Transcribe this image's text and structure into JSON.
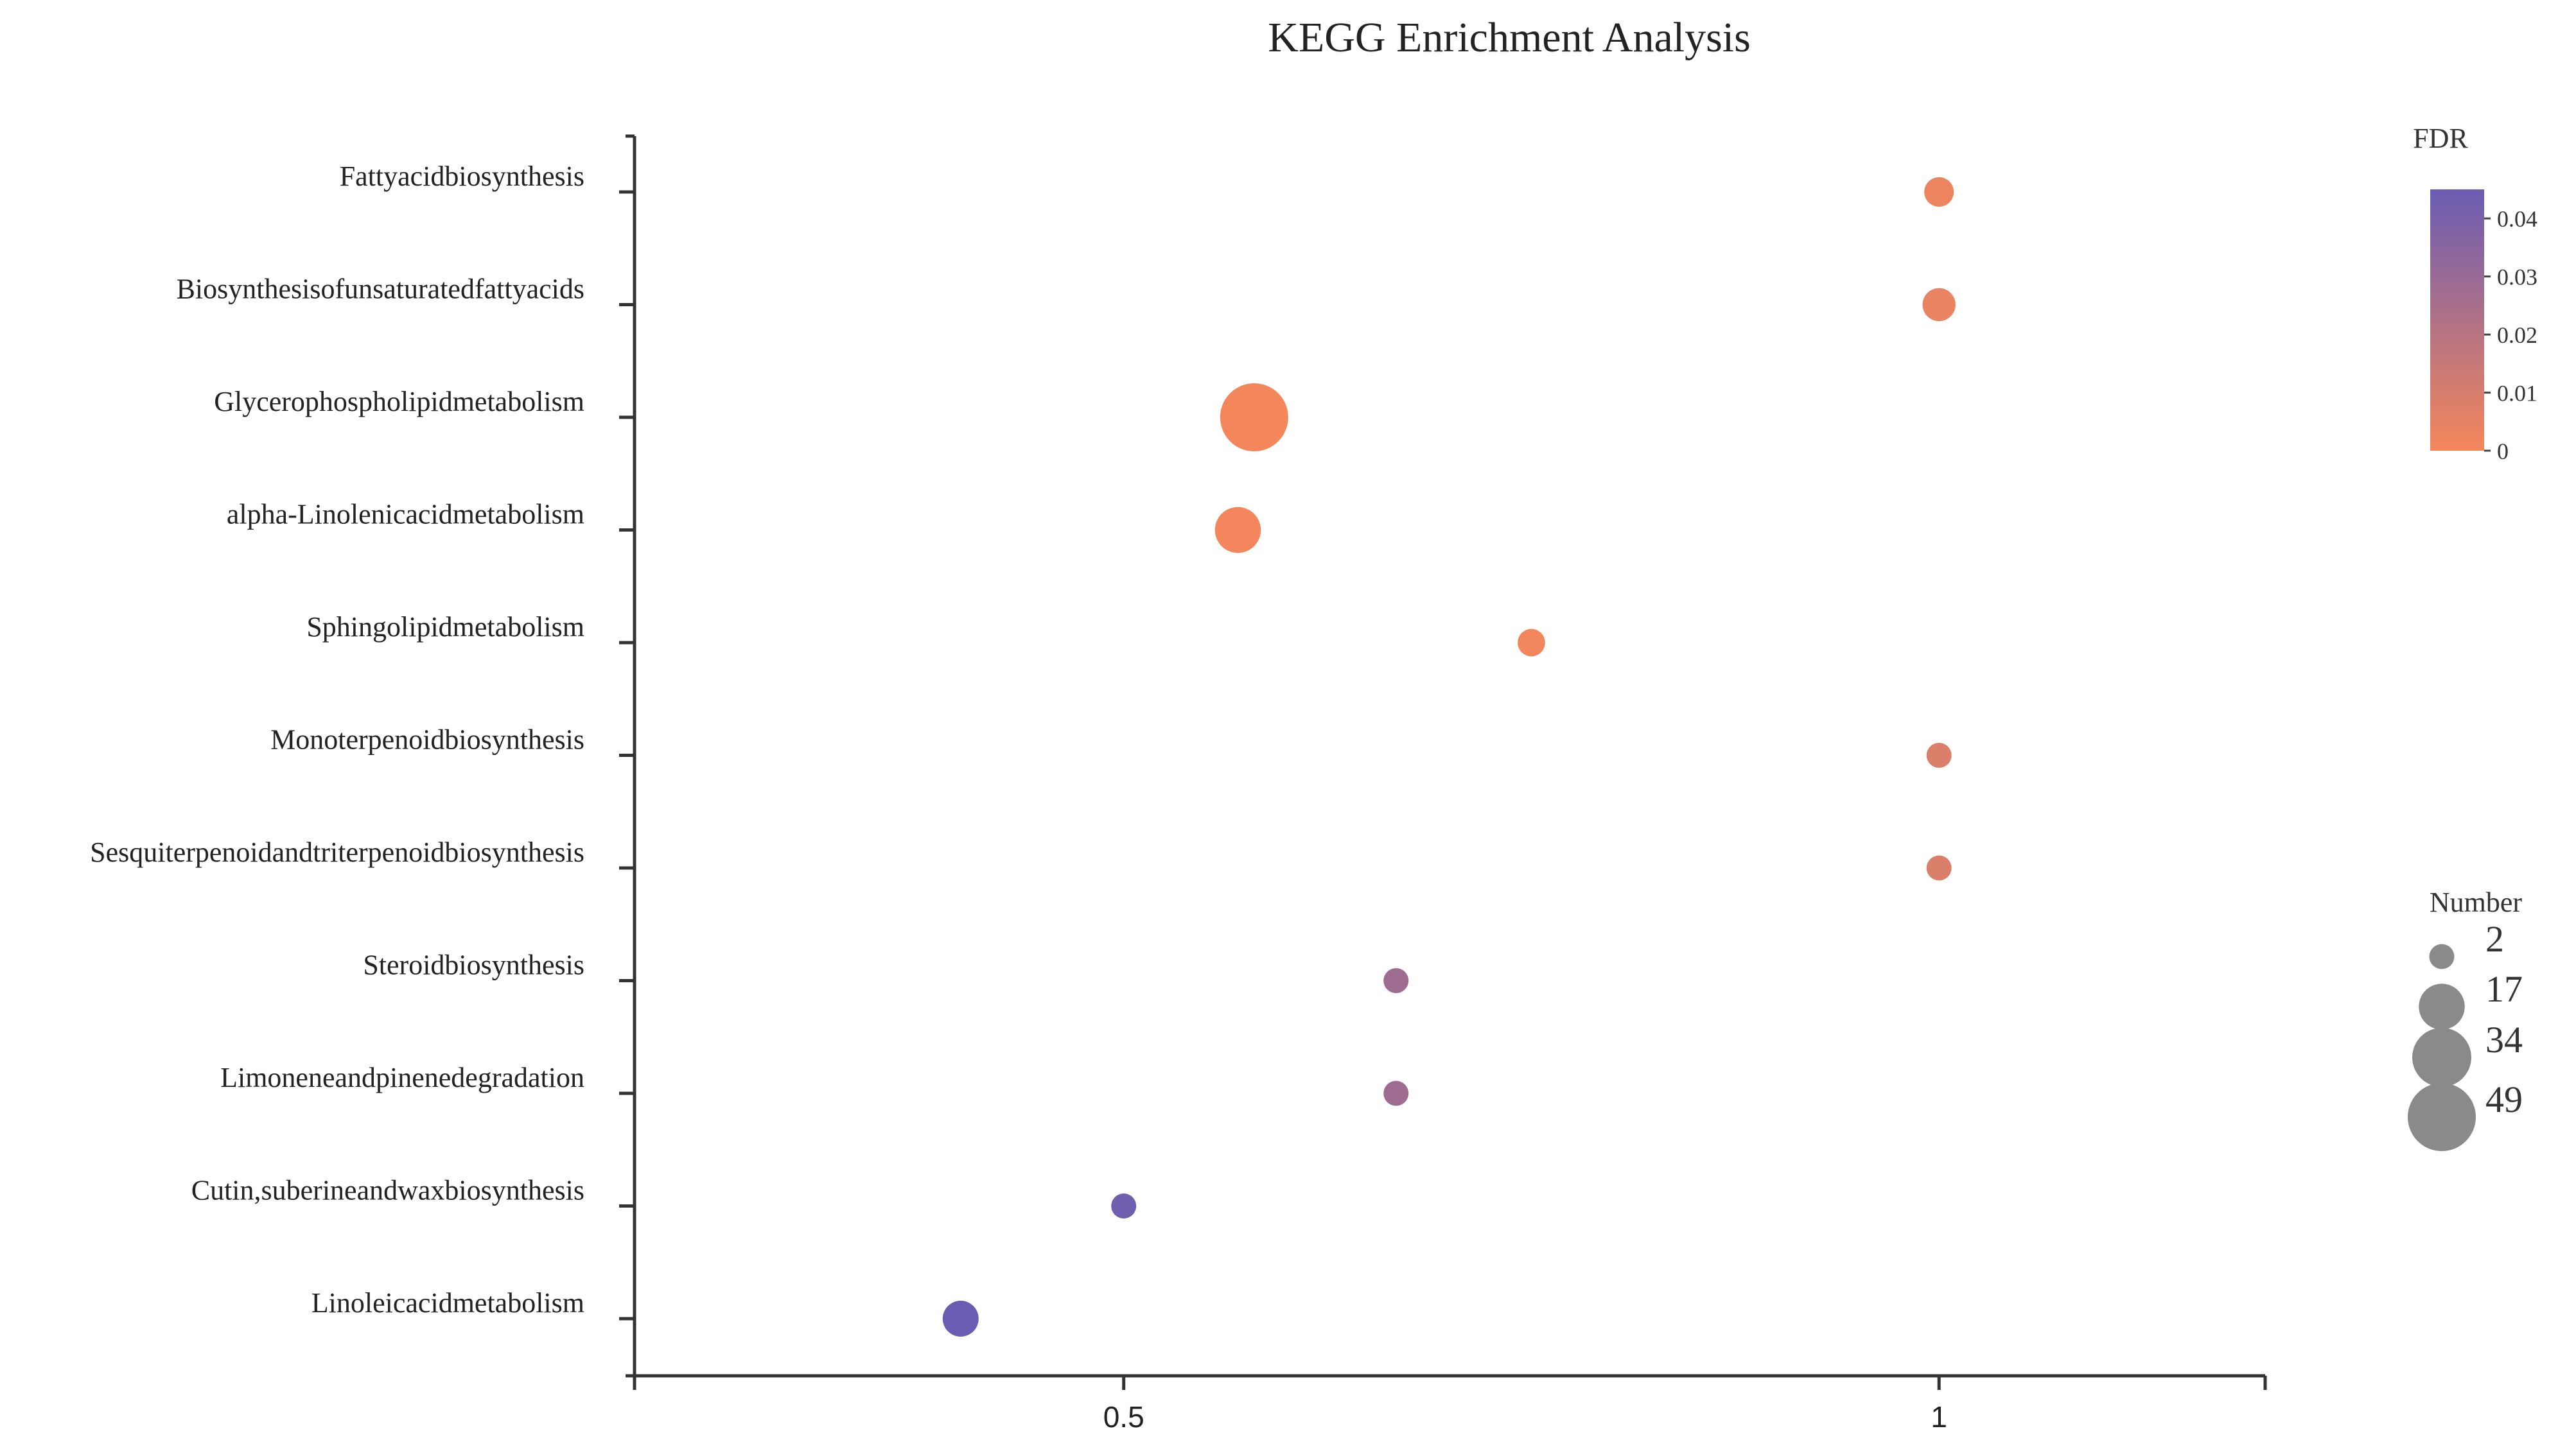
{
  "chart_data": {
    "type": "scatter",
    "title": "KEGG Enrichment Analysis",
    "xlabel": "",
    "ylabel": "",
    "xlim": [
      0.2,
      1.2
    ],
    "xticks": [
      {
        "value": 0.5,
        "label": "0.5"
      },
      {
        "value": 1,
        "label": "1"
      }
    ],
    "categories": [
      "Fattyacidbiosynthesis",
      "Biosynthesisofunsaturatedfattyacids",
      "Glycerophospholipidmetabolism",
      "alpha-Linolenicacidmetabolism",
      "Sphingolipidmetabolism",
      "Monoterpenoidbiosynthesis",
      "Sesquiterpenoidandtriterpenoidbiosynthesis",
      "Steroidbiosynthesis",
      "Limoneneandpinenedegradation",
      "Cutin,suberineandwaxbiosynthesis",
      "Linoleicacidmetabolism"
    ],
    "points": [
      {
        "category": "Fattyacidbiosynthesis",
        "x": 1.0,
        "number": 4,
        "fdr": 0.003
      },
      {
        "category": "Biosynthesisofunsaturatedfattyacids",
        "x": 1.0,
        "number": 6,
        "fdr": 0.004
      },
      {
        "category": "Glycerophospholipidmetabolism",
        "x": 0.58,
        "number": 49,
        "fdr": 0.0005
      },
      {
        "category": "alpha-Linolenicacidmetabolism",
        "x": 0.57,
        "number": 17,
        "fdr": 0.0008
      },
      {
        "category": "Sphingolipidmetabolism",
        "x": 0.75,
        "number": 3,
        "fdr": 0.001
      },
      {
        "category": "Monoterpenoidbiosynthesis",
        "x": 1.0,
        "number": 2,
        "fdr": 0.008
      },
      {
        "category": "Sesquiterpenoidandtriterpenoidbiosynthesis",
        "x": 1.0,
        "number": 2,
        "fdr": 0.008
      },
      {
        "category": "Steroidbiosynthesis",
        "x": 0.667,
        "number": 2,
        "fdr": 0.028
      },
      {
        "category": "Limoneneandpinenedegradation",
        "x": 0.667,
        "number": 2,
        "fdr": 0.028
      },
      {
        "category": "Cutin,suberineandwaxbiosynthesis",
        "x": 0.5,
        "number": 2,
        "fdr": 0.043
      },
      {
        "category": "Linoleicacidmetabolism",
        "x": 0.4,
        "number": 8,
        "fdr": 0.045
      }
    ],
    "color_legend": {
      "title": "FDR",
      "range": [
        0,
        0.045
      ],
      "ticks": [
        {
          "value": 0.04,
          "label": "0.04"
        },
        {
          "value": 0.03,
          "label": "0.03"
        },
        {
          "value": 0.02,
          "label": "0.02"
        },
        {
          "value": 0.01,
          "label": "0.01"
        },
        {
          "value": 0,
          "label": "0"
        }
      ],
      "color_low": "#f5875a",
      "color_high": "#6a5cb3"
    },
    "size_legend": {
      "title": "Number",
      "entries": [
        {
          "value": 2,
          "label": "2"
        },
        {
          "value": 17,
          "label": "17"
        },
        {
          "value": 34,
          "label": "34"
        },
        {
          "value": 49,
          "label": "49"
        }
      ]
    },
    "grid": false,
    "legend_position": "right"
  }
}
